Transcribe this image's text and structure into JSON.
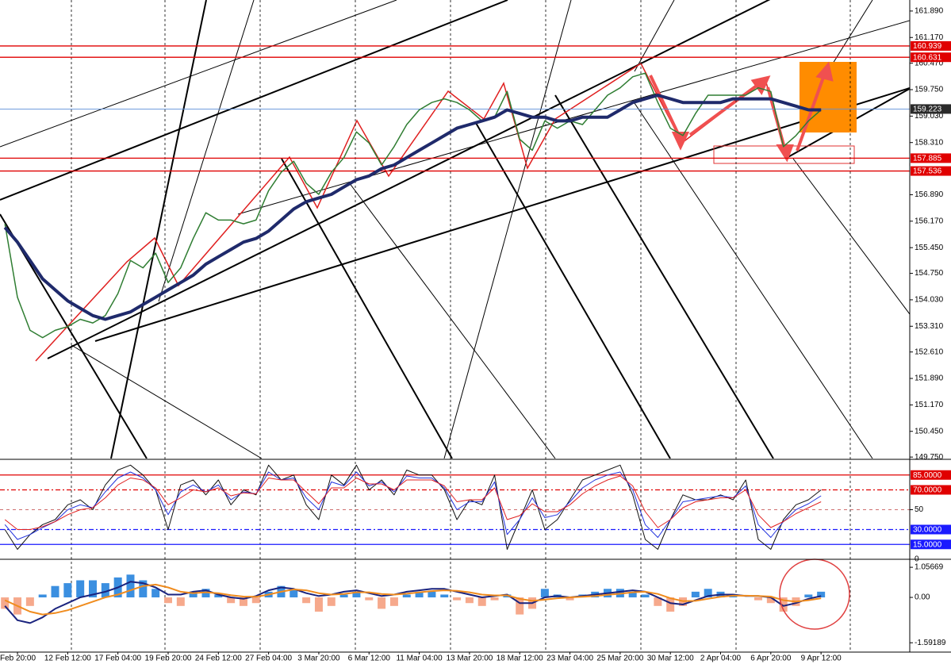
{
  "chart_data": [
    {
      "type": "line",
      "categories": [
        null,
        "Feb 20:00",
        null,
        null,
        null,
        "12 Feb 12:00",
        null,
        null,
        null,
        "17 Feb 04:00",
        null,
        null,
        null,
        "19 Feb 20:00",
        null,
        null,
        null,
        "24 Feb 12:00",
        null,
        null,
        null,
        "27 Feb 04:00",
        null,
        null,
        null,
        "3 Mar 20:00",
        null,
        null,
        null,
        "6 Mar 12:00",
        null,
        null,
        null,
        "11 Mar 04:00",
        null,
        null,
        null,
        "13 Mar 20:00",
        null,
        null,
        null,
        "18 Mar 12:00",
        null,
        null,
        null,
        "23 Mar 04:00",
        null,
        null,
        null,
        "25 Mar 20:00",
        null,
        null,
        null,
        "30 Mar 12:00",
        null,
        null,
        null,
        "2 Apr 04:00",
        null,
        null,
        null,
        "6 Apr 20:00",
        null,
        null,
        null,
        "9 Apr 12:00"
      ],
      "ylim": [
        149.71,
        162.19
      ],
      "yticks": [
        {
          "value": 161.89,
          "label": "161.890"
        },
        {
          "value": 161.17,
          "label": "161.170"
        },
        {
          "value": 160.47,
          "label": "160.470"
        },
        {
          "value": 159.75,
          "label": "159.750"
        },
        {
          "value": 159.03,
          "label": "159.030"
        },
        {
          "value": 158.31,
          "label": "158.310"
        },
        {
          "value": 156.89,
          "label": "156.890"
        },
        {
          "value": 156.17,
          "label": "156.170"
        },
        {
          "value": 155.45,
          "label": "155.450"
        },
        {
          "value": 154.75,
          "label": "154.750"
        },
        {
          "value": 154.03,
          "label": "154.030"
        },
        {
          "value": 153.31,
          "label": "153.310"
        },
        {
          "value": 152.61,
          "label": "152.610"
        },
        {
          "value": 151.89,
          "label": "151.890"
        },
        {
          "value": 151.17,
          "label": "151.170"
        },
        {
          "value": 150.45,
          "label": "150.450"
        },
        {
          "value": 149.75,
          "label": "149.750"
        }
      ],
      "levels": [
        {
          "value": 160.939,
          "color": "#e00000"
        },
        {
          "value": 160.631,
          "color": "#e00000"
        },
        {
          "value": 159.223,
          "color": "#2a2a2a"
        },
        {
          "value": 157.885,
          "color": "#e00000"
        },
        {
          "value": 157.536,
          "color": "#e00000"
        }
      ],
      "series": [
        {
          "color": "#2f7d32",
          "width": 1.5,
          "values": [
            156.1,
            154.1,
            153.2,
            153.0,
            153.2,
            153.3,
            153.5,
            153.4,
            153.6,
            154.2,
            155.1,
            154.9,
            155.3,
            154.5,
            154.9,
            155.7,
            156.4,
            156.2,
            156.2,
            156.1,
            156.2,
            157.0,
            157.5,
            157.8,
            157.2,
            156.9,
            157.5,
            157.9,
            158.6,
            158.3,
            157.7,
            158.2,
            158.8,
            159.2,
            159.4,
            159.5,
            159.4,
            159.2,
            158.9,
            159.0,
            159.7,
            158.4,
            158.1,
            158.9,
            158.7,
            158.9,
            158.8,
            159.2,
            159.6,
            159.8,
            160.1,
            160.2,
            159.4,
            158.7,
            158.5,
            159.1,
            159.6,
            159.6,
            159.6,
            159.6,
            159.8,
            159.7,
            158.2,
            158.5,
            158.9,
            159.2
          ]
        },
        {
          "color": "#1f2a6b",
          "width": 4,
          "values": [
            156.0,
            155.6,
            155.1,
            154.6,
            154.3,
            154.0,
            153.8,
            153.6,
            153.5,
            153.6,
            153.7,
            153.9,
            154.1,
            154.3,
            154.5,
            154.7,
            155.0,
            155.2,
            155.4,
            155.6,
            155.7,
            155.9,
            156.2,
            156.5,
            156.7,
            156.8,
            156.9,
            157.1,
            157.3,
            157.4,
            157.6,
            157.7,
            157.9,
            158.1,
            158.3,
            158.5,
            158.7,
            158.8,
            158.9,
            159.0,
            159.2,
            159.1,
            159.0,
            159.0,
            158.9,
            158.9,
            159.0,
            159.0,
            159.0,
            159.2,
            159.4,
            159.5,
            159.6,
            159.5,
            159.4,
            159.4,
            159.4,
            159.4,
            159.5,
            159.5,
            159.5,
            159.5,
            159.4,
            159.3,
            159.2,
            159.2
          ]
        }
      ]
    },
    {
      "type": "line",
      "ylim": [
        0,
        100
      ],
      "yticks": [
        50,
        0
      ],
      "levels": [
        {
          "value": 85,
          "label": "85.0000",
          "color": "#e00000"
        },
        {
          "value": 70,
          "label": "70.0000",
          "color": "#e00000"
        },
        {
          "value": 30,
          "label": "30.0000",
          "color": "#1a1aff"
        },
        {
          "value": 15,
          "label": "15.0000",
          "color": "#1a1aff"
        }
      ],
      "series": [
        {
          "color": "#111111",
          "width": 1,
          "values": [
            30,
            10,
            25,
            35,
            40,
            55,
            60,
            50,
            75,
            90,
            95,
            85,
            70,
            30,
            75,
            80,
            65,
            80,
            55,
            70,
            65,
            95,
            80,
            85,
            55,
            40,
            85,
            75,
            95,
            70,
            80,
            65,
            90,
            85,
            85,
            70,
            40,
            60,
            55,
            85,
            10,
            40,
            70,
            30,
            40,
            60,
            80,
            85,
            90,
            95,
            65,
            20,
            10,
            40,
            65,
            60,
            60,
            65,
            60,
            80,
            20,
            10,
            40,
            55,
            60,
            70
          ]
        },
        {
          "color": "#2233dd",
          "width": 1,
          "values": [
            35,
            20,
            25,
            32,
            38,
            50,
            55,
            52,
            68,
            82,
            88,
            82,
            70,
            45,
            68,
            75,
            68,
            75,
            60,
            68,
            66,
            88,
            80,
            82,
            62,
            50,
            78,
            74,
            88,
            74,
            78,
            68,
            84,
            82,
            82,
            72,
            50,
            58,
            58,
            78,
            25,
            40,
            62,
            42,
            45,
            58,
            72,
            80,
            85,
            88,
            70,
            35,
            22,
            40,
            58,
            60,
            62,
            64,
            62,
            74,
            35,
            22,
            38,
            50,
            56,
            64
          ]
        },
        {
          "color": "#e02020",
          "width": 1,
          "values": [
            40,
            30,
            30,
            33,
            38,
            45,
            50,
            52,
            62,
            75,
            82,
            80,
            72,
            55,
            62,
            70,
            68,
            72,
            64,
            67,
            66,
            82,
            80,
            80,
            68,
            56,
            72,
            72,
            82,
            76,
            76,
            70,
            80,
            80,
            80,
            74,
            58,
            60,
            60,
            72,
            40,
            44,
            56,
            48,
            48,
            55,
            66,
            74,
            80,
            84,
            74,
            48,
            32,
            40,
            52,
            58,
            60,
            62,
            62,
            70,
            45,
            32,
            38,
            46,
            52,
            58
          ]
        }
      ]
    },
    {
      "type": "macd",
      "ylim": [
        -1.92,
        1.31
      ],
      "yticks": [
        1.05669,
        {
          "value": 0,
          "label": "0.00"
        },
        -1.59189
      ],
      "bar_colors": {
        "positive": "#3b8fe0",
        "negative": "#f6a98c"
      },
      "values": [
        -0.4,
        -0.6,
        -0.3,
        0.1,
        0.4,
        0.5,
        0.6,
        0.6,
        0.5,
        0.7,
        0.8,
        0.6,
        0.3,
        -0.2,
        -0.3,
        0.2,
        0.3,
        0.1,
        -0.2,
        -0.3,
        -0.2,
        0.2,
        0.4,
        0.3,
        -0.2,
        -0.5,
        -0.3,
        0.1,
        0.2,
        -0.1,
        -0.4,
        -0.3,
        0.1,
        0.2,
        0.2,
        0.1,
        -0.1,
        -0.2,
        -0.3,
        -0.1,
        0.1,
        -0.6,
        -0.4,
        0.3,
        0.1,
        -0.1,
        0.1,
        0.2,
        0.3,
        0.3,
        0.2,
        0.1,
        -0.3,
        -0.5,
        -0.3,
        0.2,
        0.3,
        0.2,
        0.1,
        0.0,
        -0.1,
        -0.2,
        -0.5,
        -0.3,
        0.1,
        0.2
      ],
      "series": [
        {
          "color": "#1a237e",
          "width": 2,
          "values": [
            -0.3,
            -0.8,
            -0.9,
            -0.7,
            -0.4,
            -0.2,
            0.0,
            0.1,
            0.2,
            0.35,
            0.55,
            0.5,
            0.35,
            0.1,
            0.1,
            0.2,
            0.25,
            0.1,
            0.0,
            -0.05,
            0.05,
            0.25,
            0.35,
            0.3,
            0.15,
            0.05,
            0.1,
            0.2,
            0.25,
            0.15,
            0.05,
            0.1,
            0.2,
            0.25,
            0.3,
            0.3,
            0.2,
            0.1,
            0.0,
            0.05,
            0.1,
            -0.2,
            -0.2,
            0.0,
            0.05,
            0.0,
            0.05,
            0.1,
            0.15,
            0.2,
            0.25,
            0.2,
            0.0,
            -0.2,
            -0.25,
            -0.1,
            0.05,
            0.1,
            0.1,
            0.05,
            0.05,
            0.0,
            -0.3,
            -0.2,
            -0.05,
            0.05
          ]
        },
        {
          "color": "#f08c1e",
          "width": 2,
          "values": [
            -0.1,
            -0.3,
            -0.5,
            -0.6,
            -0.55,
            -0.45,
            -0.3,
            -0.15,
            0.0,
            0.1,
            0.25,
            0.4,
            0.45,
            0.35,
            0.2,
            0.15,
            0.18,
            0.15,
            0.08,
            0.03,
            0.02,
            0.1,
            0.2,
            0.28,
            0.25,
            0.15,
            0.1,
            0.12,
            0.18,
            0.18,
            0.12,
            0.1,
            0.13,
            0.18,
            0.22,
            0.25,
            0.23,
            0.18,
            0.1,
            0.07,
            0.07,
            -0.05,
            -0.12,
            -0.08,
            -0.03,
            0.0,
            0.02,
            0.05,
            0.09,
            0.13,
            0.18,
            0.2,
            0.12,
            -0.03,
            -0.13,
            -0.12,
            -0.05,
            0.02,
            0.06,
            0.06,
            0.05,
            0.03,
            -0.1,
            -0.15,
            -0.1,
            -0.03
          ]
        }
      ]
    }
  ]
}
